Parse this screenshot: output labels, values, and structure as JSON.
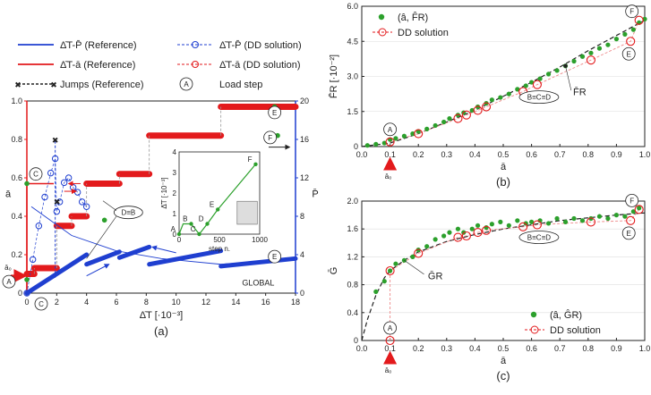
{
  "chart_data": [
    {
      "id": "a",
      "type": "line",
      "caption": "(a)",
      "xlabel": "Δ̄T [·10⁻³]",
      "ylabel_left": "ā",
      "ylabel_right": "P̄",
      "xlim": [
        0,
        18
      ],
      "ylim_left": [
        0,
        1.0
      ],
      "ylim_right": [
        0,
        20
      ],
      "xticks": [
        "0",
        "2",
        "4",
        "6",
        "8",
        "10",
        "12",
        "14",
        "16",
        "18"
      ],
      "yticks_left": [
        "0",
        "0.2",
        "0.4",
        "0.6",
        "0.8",
        "1.0"
      ],
      "yticks_right": [
        "0",
        "4",
        "8",
        "12",
        "16",
        "20"
      ],
      "a0_label": "ā₀",
      "global_label": "GLOBAL",
      "legend": [
        {
          "label": "Δ̄T-P̄ (Reference)",
          "color": "#1f3fd0",
          "style": "line"
        },
        {
          "label": "Δ̄T-P̄ (DD solution)",
          "color": "#1f3fd0",
          "style": "dashed-circle"
        },
        {
          "label": "Δ̄T-ā (Reference)",
          "color": "#e31a1c",
          "style": "line"
        },
        {
          "label": "Δ̄T-ā (DD solution)",
          "color": "#e31a1c",
          "style": "dashed-circle"
        },
        {
          "label": "Jumps (Reference)",
          "color": "#222222",
          "style": "dashed-x"
        },
        {
          "label": "Load step",
          "color": "#222222",
          "style": "circle-letter",
          "symbol": "A"
        }
      ],
      "series_a_ref": [
        {
          "x": [
            0,
            0.5
          ],
          "y": [
            0.1,
            0.1
          ]
        },
        {
          "x": [
            0.5,
            2.0
          ],
          "y": [
            0.13,
            0.13
          ]
        },
        {
          "x": [
            2.0,
            3.0
          ],
          "y": [
            0.35,
            0.35
          ]
        },
        {
          "x": [
            3.0,
            4.0
          ],
          "y": [
            0.4,
            0.4
          ]
        },
        {
          "x": [
            4.0,
            6.2
          ],
          "y": [
            0.57,
            0.57
          ]
        },
        {
          "x": [
            6.2,
            8.2
          ],
          "y": [
            0.62,
            0.62
          ]
        },
        {
          "x": [
            8.2,
            13.0
          ],
          "y": [
            0.82,
            0.82
          ]
        },
        {
          "x": [
            13.0,
            18.0
          ],
          "y": [
            0.97,
            0.97
          ]
        }
      ],
      "series_a_ref_left": {
        "x": [
          0,
          0,
          1.8
        ],
        "y": [
          0,
          0.57,
          0.57
        ]
      },
      "series_P_ref": [
        {
          "x": [
            0,
            4.0
          ],
          "y": [
            0,
            4.0
          ]
        },
        {
          "x": [
            4.0,
            6.2
          ],
          "y": [
            3.0,
            4.3
          ]
        },
        {
          "x": [
            6.2,
            8.2
          ],
          "y": [
            3.7,
            4.8
          ]
        },
        {
          "x": [
            8.2,
            13.0
          ],
          "y": [
            3.0,
            4.4
          ]
        },
        {
          "x": [
            13.0,
            18.0
          ],
          "y": [
            2.8,
            3.6
          ]
        }
      ],
      "series_P_dd_loop": {
        "x": [
          0,
          0.4,
          0.8,
          1.2,
          1.6,
          1.9,
          2.0,
          2.2,
          2.5,
          2.8,
          3.1,
          3.4,
          3.7,
          4.0
        ],
        "y": [
          0,
          3.5,
          7.0,
          10.0,
          12.5,
          14.0,
          8.5,
          9.5,
          11.5,
          12.0,
          11.0,
          10.5,
          9.5,
          9.0
        ]
      },
      "jumps_ref": {
        "x": [
          1.9,
          1.9
        ],
        "y": [
          0.08,
          0.8
        ]
      },
      "load_steps_a": [
        {
          "id": "A",
          "x": 0,
          "y": 0.07
        },
        {
          "id": "C",
          "x": 0,
          "y": 0.57
        },
        {
          "id": "D≡B",
          "x": 5.2,
          "y": 0.38
        },
        {
          "id": "E",
          "x": 16.6,
          "y": 0.97
        },
        {
          "id": "F",
          "x": 16.8,
          "y": 0.82
        }
      ],
      "load_steps_P": [
        {
          "id": "C",
          "x": 0.5,
          "y": 0.0
        },
        {
          "id": "E",
          "x": 16.6,
          "y": 3.5
        },
        {
          "id": "F",
          "x": 17.2,
          "y": 16.5
        }
      ],
      "inset": {
        "xlabel": "step n.",
        "ylabel": "Δ̄T [·10⁻³]",
        "xticks": [
          "0",
          "500",
          "1000"
        ],
        "yticks": [
          "0",
          "1",
          "2",
          "3",
          "4"
        ],
        "xlim": [
          0,
          1000
        ],
        "ylim": [
          0,
          4
        ],
        "x": [
          0,
          50,
          150,
          250,
          350,
          480,
          950
        ],
        "y": [
          0,
          0.5,
          0.5,
          0,
          0.5,
          1.2,
          3.4
        ],
        "labels": [
          "A",
          "B",
          "C",
          "D",
          "E",
          "F"
        ],
        "color": "#2ca02c"
      }
    },
    {
      "id": "b",
      "type": "scatter",
      "caption": "(b)",
      "xlabel": "ā",
      "ylabel": "F̄R [·10⁻²]",
      "xlim": [
        0,
        1.0
      ],
      "ylim": [
        0,
        6.0
      ],
      "xticks": [
        "0.0",
        "0.1",
        "0.2",
        "0.3",
        "0.4",
        "0.5",
        "0.6",
        "0.7",
        "0.8",
        "0.9",
        "1.0"
      ],
      "yticks": [
        "0",
        "1.5",
        "3.0",
        "4.5",
        "6.0"
      ],
      "a0_label": "ā₀",
      "curve_label": "F̄R",
      "legend": [
        {
          "label": "(â, F̂R)",
          "color": "#2ca02c",
          "style": "dot"
        },
        {
          "label": "DD solution",
          "color": "#e31a1c",
          "style": "dashed-circle"
        }
      ],
      "ref_x": [
        0,
        0.1,
        0.2,
        0.3,
        0.4,
        0.5,
        0.6,
        0.7,
        0.8,
        0.9,
        1.0
      ],
      "ref_y": [
        0,
        0.15,
        0.55,
        1.05,
        1.55,
        2.15,
        2.75,
        3.4,
        4.1,
        4.75,
        5.4
      ],
      "pts_x": [
        0.02,
        0.05,
        0.08,
        0.1,
        0.12,
        0.15,
        0.18,
        0.2,
        0.23,
        0.26,
        0.29,
        0.31,
        0.34,
        0.36,
        0.39,
        0.41,
        0.44,
        0.46,
        0.49,
        0.52,
        0.55,
        0.58,
        0.6,
        0.63,
        0.66,
        0.69,
        0.72,
        0.75,
        0.78,
        0.81,
        0.84,
        0.87,
        0.9,
        0.93,
        0.96,
        0.98,
        1.0
      ],
      "pts_y": [
        0.05,
        0.1,
        0.15,
        0.3,
        0.35,
        0.45,
        0.55,
        0.65,
        0.75,
        0.9,
        1.05,
        1.2,
        1.35,
        1.45,
        1.55,
        1.7,
        1.85,
        2.0,
        2.1,
        2.25,
        2.45,
        2.6,
        2.75,
        2.9,
        3.1,
        3.25,
        3.45,
        3.65,
        3.85,
        4.0,
        4.2,
        4.35,
        4.6,
        4.8,
        5.0,
        5.3,
        5.45
      ],
      "dd_x": [
        0.1,
        0.2,
        0.34,
        0.37,
        0.41,
        0.44,
        0.57,
        0.62,
        0.81,
        0.95,
        0.98
      ],
      "dd_y": [
        0.2,
        0.55,
        1.2,
        1.35,
        1.55,
        1.7,
        2.35,
        2.65,
        3.7,
        4.5,
        5.4
      ],
      "steps": [
        {
          "id": "A",
          "x": 0.1,
          "y": 0.2
        },
        {
          "id": "B≡C≡D",
          "x": 0.62,
          "y": 2.65
        },
        {
          "id": "E",
          "x": 0.95,
          "y": 4.5
        },
        {
          "id": "F",
          "x": 0.98,
          "y": 5.4
        }
      ]
    },
    {
      "id": "c",
      "type": "scatter",
      "caption": "(c)",
      "xlabel": "ā",
      "ylabel": "Ḡ",
      "xlim": [
        0,
        1.0
      ],
      "ylim": [
        0,
        2.0
      ],
      "xticks": [
        "0.0",
        "0.1",
        "0.2",
        "0.3",
        "0.4",
        "0.5",
        "0.6",
        "0.7",
        "0.8",
        "0.9",
        "1.0"
      ],
      "yticks": [
        "0",
        "0.4",
        "0.8",
        "1.2",
        "1.6",
        "2.0"
      ],
      "a0_label": "ā₀",
      "curve_label": "ḠR",
      "legend": [
        {
          "label": "(â, ĜR)",
          "color": "#2ca02c",
          "style": "dot"
        },
        {
          "label": "DD solution",
          "color": "#e31a1c",
          "style": "dashed-circle"
        }
      ],
      "ref_x": [
        0,
        0.02,
        0.05,
        0.08,
        0.1,
        0.15,
        0.2,
        0.3,
        0.4,
        0.5,
        0.6,
        0.7,
        0.8,
        0.9,
        1.0
      ],
      "ref_y": [
        0,
        0.3,
        0.65,
        0.9,
        1.0,
        1.15,
        1.27,
        1.42,
        1.52,
        1.6,
        1.66,
        1.72,
        1.76,
        1.8,
        1.83
      ],
      "pts_x": [
        0.05,
        0.08,
        0.1,
        0.12,
        0.15,
        0.18,
        0.2,
        0.23,
        0.26,
        0.29,
        0.31,
        0.34,
        0.36,
        0.39,
        0.41,
        0.44,
        0.46,
        0.49,
        0.52,
        0.55,
        0.58,
        0.6,
        0.63,
        0.66,
        0.69,
        0.72,
        0.75,
        0.78,
        0.81,
        0.84,
        0.87,
        0.9,
        0.93,
        0.96,
        0.98
      ],
      "pts_y": [
        0.7,
        0.85,
        1.0,
        1.1,
        1.15,
        1.2,
        1.3,
        1.35,
        1.45,
        1.5,
        1.55,
        1.6,
        1.55,
        1.6,
        1.65,
        1.62,
        1.67,
        1.7,
        1.65,
        1.72,
        1.68,
        1.7,
        1.72,
        1.68,
        1.75,
        1.7,
        1.75,
        1.72,
        1.75,
        1.78,
        1.75,
        1.8,
        1.78,
        1.85,
        1.9
      ],
      "dd_x": [
        0.1,
        0.1,
        0.2,
        0.34,
        0.37,
        0.41,
        0.44,
        0.57,
        0.62,
        0.81,
        0.95,
        0.98
      ],
      "dd_y": [
        0,
        1.0,
        1.25,
        1.48,
        1.5,
        1.55,
        1.58,
        1.63,
        1.66,
        1.7,
        1.72,
        1.88
      ],
      "steps": [
        {
          "id": "A",
          "x": 0.1,
          "y": 0.0
        },
        {
          "id": "B≡C≡D",
          "x": 0.62,
          "y": 1.66
        },
        {
          "id": "E",
          "x": 0.95,
          "y": 1.72
        },
        {
          "id": "F",
          "x": 0.98,
          "y": 1.88
        }
      ]
    }
  ]
}
